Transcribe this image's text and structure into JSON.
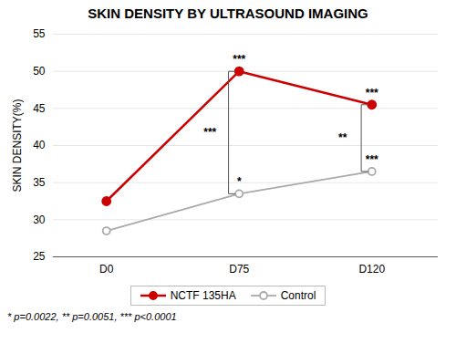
{
  "chart_data": {
    "type": "line",
    "title": "SKIN DENSITY BY ULTRASOUND IMAGING",
    "ylabel": "SKIN DENSITY(%)",
    "categories": [
      "D0",
      "D75",
      "D120"
    ],
    "series": [
      {
        "name": "NCTF 135HA",
        "color": "#cc0000",
        "marker": "filled circle",
        "values": [
          32.5,
          50.0,
          45.5
        ]
      },
      {
        "name": "Control",
        "color": "#aaaaaa",
        "marker": "open circle",
        "values": [
          28.5,
          33.5,
          36.5
        ]
      }
    ],
    "ylim": [
      25,
      55
    ],
    "yticks": [
      25,
      30,
      35,
      40,
      45,
      50,
      55
    ],
    "grid": true,
    "legend": "bottom",
    "annotations": [
      {
        "text": "***",
        "series": "NCTF 135HA",
        "category": "D75"
      },
      {
        "text": "***",
        "series": "NCTF 135HA",
        "category": "D120"
      },
      {
        "text": "*",
        "series": "Control",
        "category": "D75"
      },
      {
        "text": "***",
        "series": "Control",
        "category": "D120"
      }
    ],
    "brackets": [
      {
        "text": "***",
        "category": "D75",
        "between": [
          "NCTF 135HA",
          "Control"
        ]
      },
      {
        "text": "**",
        "category": "D120",
        "between": [
          "NCTF 135HA",
          "Control"
        ]
      }
    ],
    "footnote": "* p=0.0022, ** p=0.0051, *** p<0.0001"
  }
}
